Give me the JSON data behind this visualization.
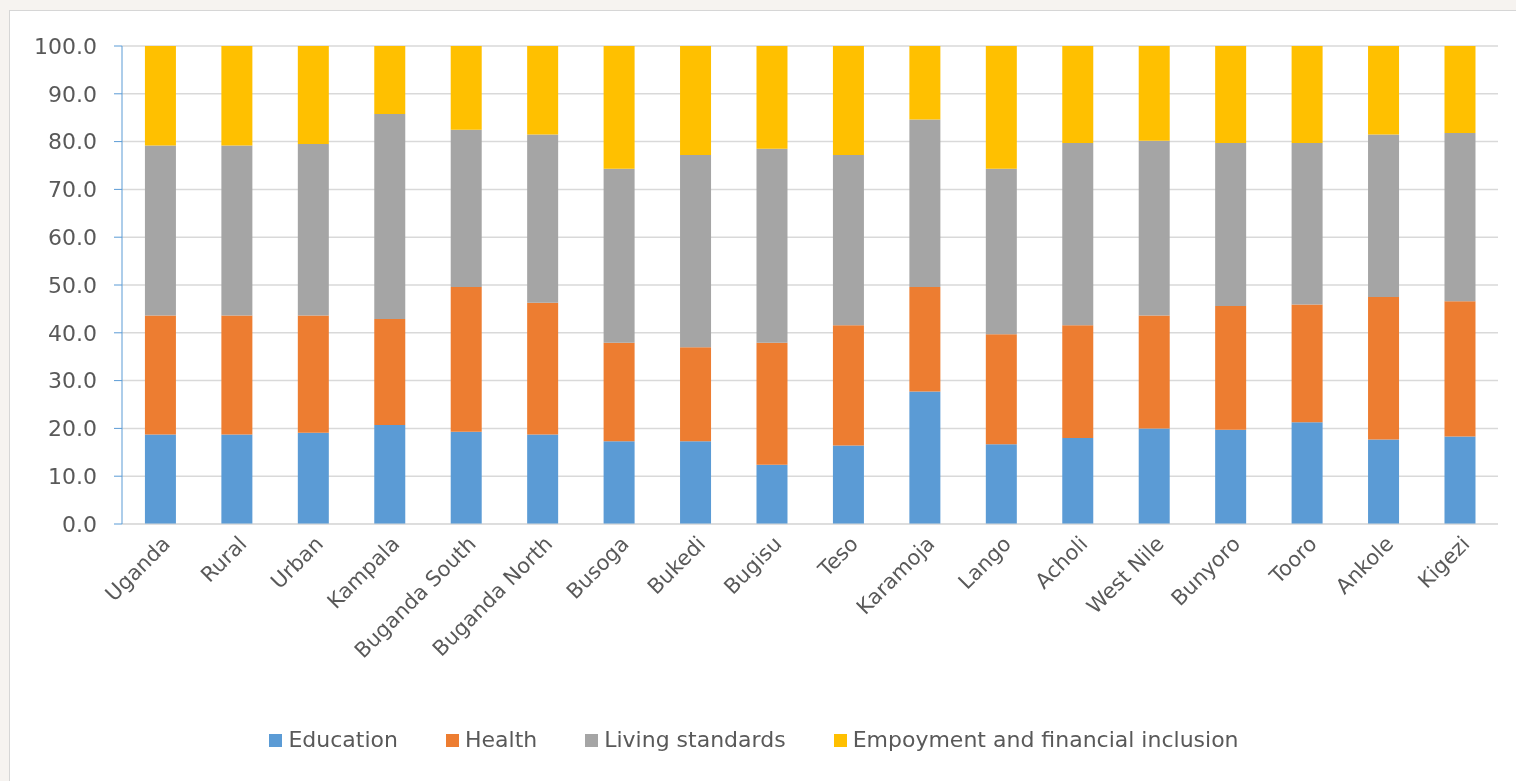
{
  "chart_data": {
    "type": "bar",
    "stacked": true,
    "categories": [
      "Uganda",
      "Rural",
      "Urban",
      "Kampala",
      "Buganda South",
      "Buganda North",
      "Busoga",
      "Bukedi",
      "Bugisu",
      "Teso",
      "Karamoja",
      "Lango",
      "Acholi",
      "West Nile",
      "Bunyoro",
      "Tooro",
      "Ankole",
      "Kigezi"
    ],
    "series": [
      {
        "name": "Education",
        "color": "#5b9bd5",
        "values": [
          18.7,
          18.7,
          19.1,
          20.7,
          19.3,
          18.7,
          17.3,
          17.3,
          12.4,
          16.4,
          27.7,
          16.7,
          18.0,
          20.0,
          19.7,
          21.3,
          17.7,
          18.3
        ]
      },
      {
        "name": "Health",
        "color": "#ed7d31",
        "values": [
          24.9,
          24.9,
          24.5,
          22.2,
          30.3,
          27.6,
          20.6,
          19.7,
          25.5,
          25.2,
          21.9,
          23.0,
          23.6,
          23.6,
          25.9,
          24.6,
          29.8,
          28.3
        ]
      },
      {
        "name": "Living standards",
        "color": "#a5a5a5",
        "values": [
          35.6,
          35.6,
          35.9,
          42.9,
          32.9,
          35.2,
          36.4,
          40.2,
          40.6,
          35.6,
          35.0,
          34.6,
          38.1,
          36.6,
          34.1,
          33.8,
          34.0,
          35.2
        ]
      },
      {
        "name": "Empoyment and financial inclusion",
        "color": "#ffc000",
        "values": [
          20.8,
          20.8,
          20.5,
          14.2,
          17.5,
          18.5,
          25.7,
          22.8,
          21.5,
          22.8,
          15.4,
          25.7,
          20.3,
          19.8,
          20.3,
          20.3,
          18.5,
          18.2
        ]
      }
    ],
    "ylim": [
      0,
      100
    ],
    "yticks": [
      {
        "value": 0,
        "label": "0.0"
      },
      {
        "value": 10,
        "label": "10.0"
      },
      {
        "value": 20,
        "label": "20.0"
      },
      {
        "value": 30,
        "label": "30.0"
      },
      {
        "value": 40,
        "label": "40.0"
      },
      {
        "value": 50,
        "label": "50.0"
      },
      {
        "value": 60,
        "label": "60.0"
      },
      {
        "value": 70,
        "label": "70.0"
      },
      {
        "value": 80,
        "label": "80.0"
      },
      {
        "value": 90,
        "label": "90.0"
      },
      {
        "value": 100,
        "label": "100.0"
      }
    ],
    "grid": "y",
    "legend": "bottom"
  }
}
